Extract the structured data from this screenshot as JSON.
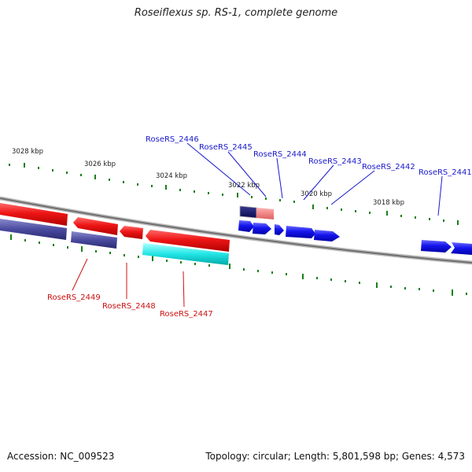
{
  "title": "Roseiflexus sp. RS-1, complete genome",
  "footer": {
    "accession": "Accession: NC_009523",
    "summary": "Topology: circular; Length: 5,801,598 bp; Genes: 4,573"
  },
  "colors": {
    "backbone": "#888888",
    "tick": "#1a7f1a",
    "forward_gene": "#1515ee",
    "reverse_gene": "#ee1515",
    "reverse_gene_dark": "#4a4aa0",
    "highlight_cyan": "#22e5e5",
    "forward_label": "#1a1acc",
    "reverse_label": "#cc1111"
  },
  "scale_labels": [
    "3028 kbp",
    "3026 kbp",
    "3024 kbp",
    "3022 kbp",
    "3020 kbp",
    "3018 kbp"
  ],
  "forward_labels": [
    "RoseRS_2446",
    "RoseRS_2445",
    "RoseRS_2444",
    "RoseRS_2443",
    "RoseRS_2442",
    "RoseRS_2441"
  ],
  "reverse_labels": [
    "RoseRS_2449",
    "RoseRS_2448",
    "RoseRS_2447"
  ]
}
